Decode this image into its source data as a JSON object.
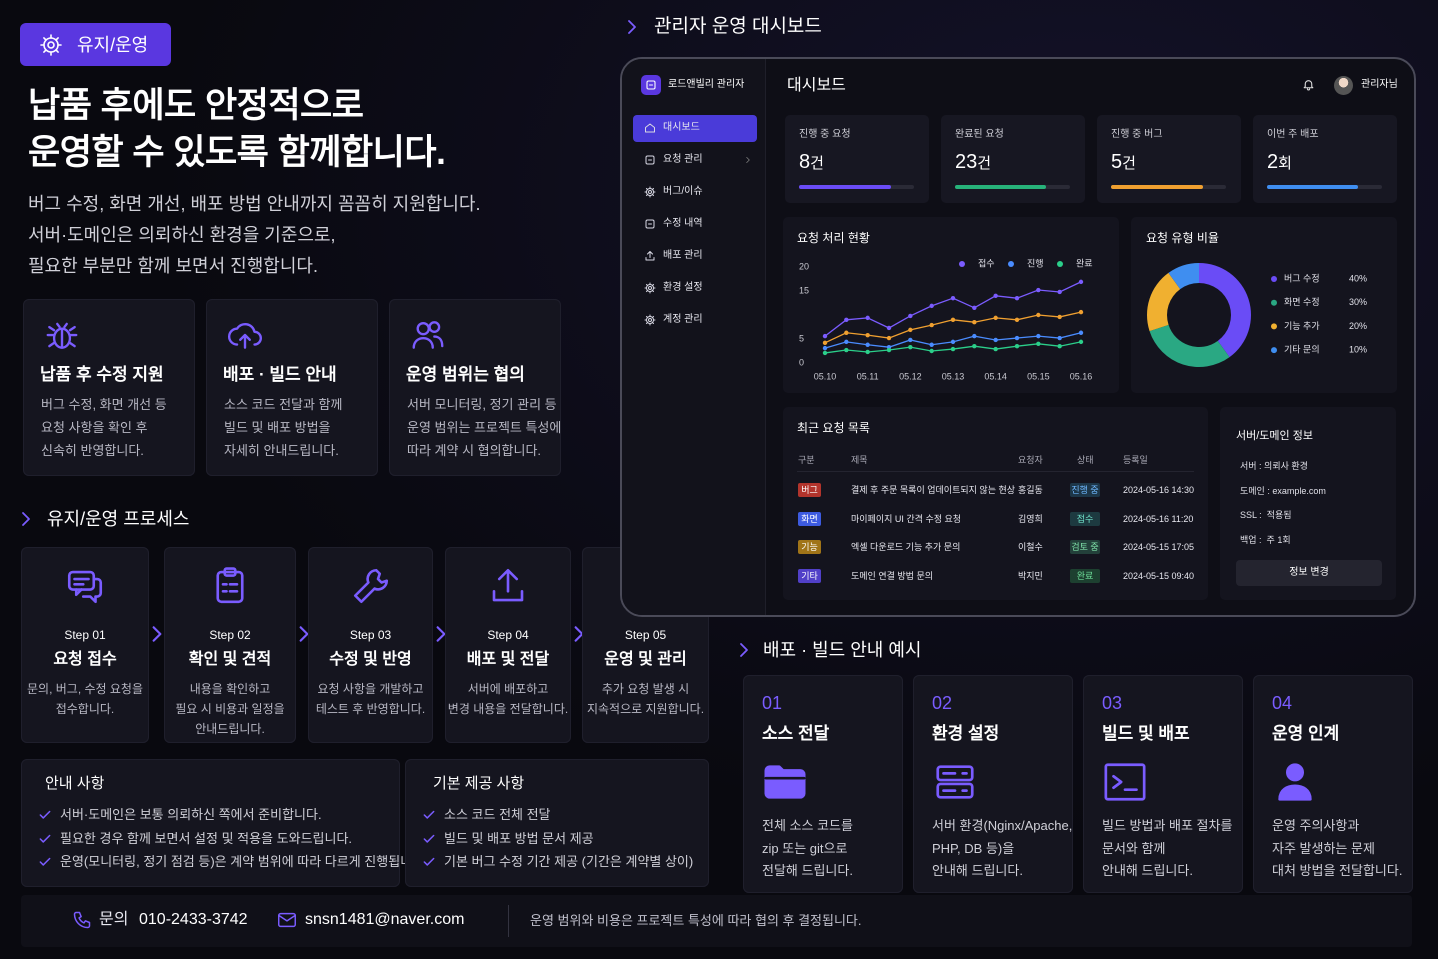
{
  "badge": "유지/운영",
  "hero": {
    "title": [
      "납품 후에도 안정적으로",
      "운영할 수 있도록 함께합니다."
    ],
    "description": [
      "버그 수정, 화면 개선, 배포 방법 안내까지 꼼꼼히 지원합니다.",
      "서버·도메인은 의뢰하신 환경을 기준으로,",
      "필요한 부분만 함께 보면서 진행합니다."
    ]
  },
  "features": [
    {
      "title": "납품 후 수정 지원",
      "lines": [
        "버그 수정, 화면 개선 등",
        "요청 사항을 확인 후",
        "신속히 반영합니다."
      ]
    },
    {
      "title": "배포 · 빌드 안내",
      "lines": [
        "소스 코드 전달과 함께",
        "빌드 및 배포 방법을",
        "자세히 안내드립니다."
      ]
    },
    {
      "title": "운영 범위는 협의",
      "lines": [
        "서버 모니터링, 정기 관리 등",
        "운영 범위는 프로젝트 특성에",
        "따라 계약 시 협의합니다."
      ]
    }
  ],
  "process": {
    "title": "유지/운영 프로세스",
    "steps": [
      {
        "step": "Step 01",
        "title": "요청 접수",
        "lines": [
          "문의, 버그, 수정 요청을",
          "접수합니다."
        ]
      },
      {
        "step": "Step 02",
        "title": "확인 및 견적",
        "lines": [
          "내용을 확인하고",
          "필요 시 비용과 일정을",
          "안내드립니다."
        ]
      },
      {
        "step": "Step 03",
        "title": "수정 및 반영",
        "lines": [
          "요청 사항을 개발하고",
          "테스트 후 반영합니다."
        ]
      },
      {
        "step": "Step 04",
        "title": "배포 및 전달",
        "lines": [
          "서버에 배포하고",
          "변경 내용을 전달합니다."
        ]
      },
      {
        "step": "Step 05",
        "title": "운영 및 관리",
        "lines": [
          "추가 요청 발생 시",
          "지속적으로 지원합니다."
        ]
      }
    ]
  },
  "notice": {
    "title": "안내 사항",
    "items": [
      "서버·도메인은 보통 의뢰하신 쪽에서 준비합니다.",
      "필요한 경우 함께 보면서 설정 및 적용을 도와드립니다.",
      "운영(모니터링, 정기 점검 등)은 계약 범위에 따라 다르게 진행됩니다."
    ]
  },
  "provided": {
    "title": "기본 제공 사항",
    "items": [
      "소스 코드 전체 전달",
      "빌드 및 배포 방법 문서 제공",
      "기본 버그 수정 기간 제공 (기간은 계약별 상이)"
    ]
  },
  "contact": {
    "phone_label": "문의",
    "phone": "010-2433-3742",
    "email": "snsn1481@naver.com",
    "note": "운영 범위와 비용은 프로젝트 특성에 따라 협의 후 결정됩니다."
  },
  "dashboard": {
    "heading": "관리자 운영 대시보드",
    "brand": "로드앤빌리 관리자",
    "nav": [
      "대시보드",
      "요청 관리",
      "버그/이슈",
      "수정 내역",
      "배포 관리",
      "환경 설정",
      "계정 관리"
    ],
    "active_nav": 0,
    "page_title": "대시보드",
    "user": "관리자님",
    "stats": [
      {
        "label": "진행 중 요청",
        "value": 8,
        "unit": "건",
        "progress": 80,
        "color": "#6a4cf6"
      },
      {
        "label": "완료된 요청",
        "value": 23,
        "unit": "건",
        "progress": 79,
        "color": "#27b27a"
      },
      {
        "label": "진행 중 버그",
        "value": 5,
        "unit": "건",
        "progress": 80,
        "color": "#f0a030"
      },
      {
        "label": "이번 주 배포",
        "value": 2,
        "unit": "회",
        "progress": 79,
        "color": "#3f8ef0"
      }
    ],
    "recent": {
      "title": "최근 요청 목록",
      "columns": [
        "구분",
        "제목",
        "요청자",
        "상태",
        "등록일"
      ],
      "rows": [
        [
          "버그",
          "결제 후 주문 목록이 업데이트되지 않는 현상",
          "홍길동",
          "진행 중",
          "2024-05-16 14:30"
        ],
        [
          "화면",
          "마이페이지 UI 간격 수정 요청",
          "김영희",
          "접수",
          "2024-05-16 11:20"
        ],
        [
          "기능",
          "엑셀 다운로드 기능 추가 문의",
          "이철수",
          "검토 중",
          "2024-05-15 17:05"
        ],
        [
          "기타",
          "도메인 연결 방법 문의",
          "박지민",
          "완료",
          "2024-05-15 09:40"
        ]
      ]
    },
    "server": {
      "title": "서버/도메인 정보",
      "items": [
        "서버 : 의뢰사 환경",
        "도메인 : example.com",
        "SSL :  적용됨",
        "백업 :  주 1회"
      ],
      "button": "정보 변경"
    }
  },
  "chart_data": [
    {
      "type": "line",
      "title": "요청 처리 현황",
      "categories": [
        "05.10",
        null,
        "05.11",
        null,
        "05.12",
        null,
        "05.13",
        null,
        "05.14",
        null,
        "05.15",
        null,
        "05.16"
      ],
      "ylim": [
        0,
        20
      ],
      "yticks": [
        0,
        5,
        15,
        20
      ],
      "series": [
        {
          "name": "접수",
          "color": "#7b5cff",
          "values": [
            5.6,
            9,
            9.4,
            7.3,
            9.8,
            11.9,
            13.5,
            11.5,
            14,
            13.5,
            15.2,
            14.8,
            16.9
          ]
        },
        {
          "name": "진행",
          "color": "#4a8cff",
          "values": [
            3.1,
            4.4,
            3.8,
            3.3,
            4.8,
            3.8,
            4.4,
            5.6,
            4.8,
            5.2,
            5.6,
            5.2,
            6.3
          ]
        },
        {
          "name": "완료",
          "color": "#2bcf8a",
          "values": [
            2.1,
            2.7,
            2.3,
            2.7,
            3.3,
            2.5,
            2.9,
            3.5,
            2.9,
            3.5,
            4,
            3.5,
            4.4
          ]
        },
        {
          "color": "#f0a030",
          "values": [
            4.2,
            6.3,
            5.8,
            5.2,
            6.9,
            7.9,
            9,
            8.5,
            9.4,
            9,
            10,
            9.6,
            10.6
          ]
        }
      ]
    },
    {
      "type": "donut",
      "title": "요청 유형 비율",
      "categories": [
        "버그 수정",
        "화면 수정",
        "기능 추가",
        "기타 문의"
      ],
      "values": [
        40,
        30,
        20,
        10
      ],
      "value_labels": [
        "40%",
        "30%",
        "20%",
        "10%"
      ],
      "colors": [
        "#6a4cf6",
        "#2aa883",
        "#f0b030",
        "#3f8ef0"
      ]
    }
  ],
  "deploy": {
    "title": "배포 · 빌드 안내 예시",
    "cards": [
      {
        "number": "01",
        "title": "소스 전달",
        "lines": [
          "전체 소스 코드를",
          "zip 또는 git으로",
          "전달해 드립니다."
        ]
      },
      {
        "number": "02",
        "title": "환경 설정",
        "lines": [
          "서버 환경(Nginx/Apache,",
          "PHP, DB 등)을",
          "안내해 드립니다."
        ]
      },
      {
        "number": "03",
        "title": "빌드 및 배포",
        "lines": [
          "빌드 방법과 배포 절차를",
          "문서와 함께",
          "안내해 드립니다."
        ]
      },
      {
        "number": "04",
        "title": "운영 인계",
        "lines": [
          "운영 주의사항과",
          "자주 발생하는 문제",
          "대처 방법을 전달합니다."
        ]
      }
    ]
  }
}
